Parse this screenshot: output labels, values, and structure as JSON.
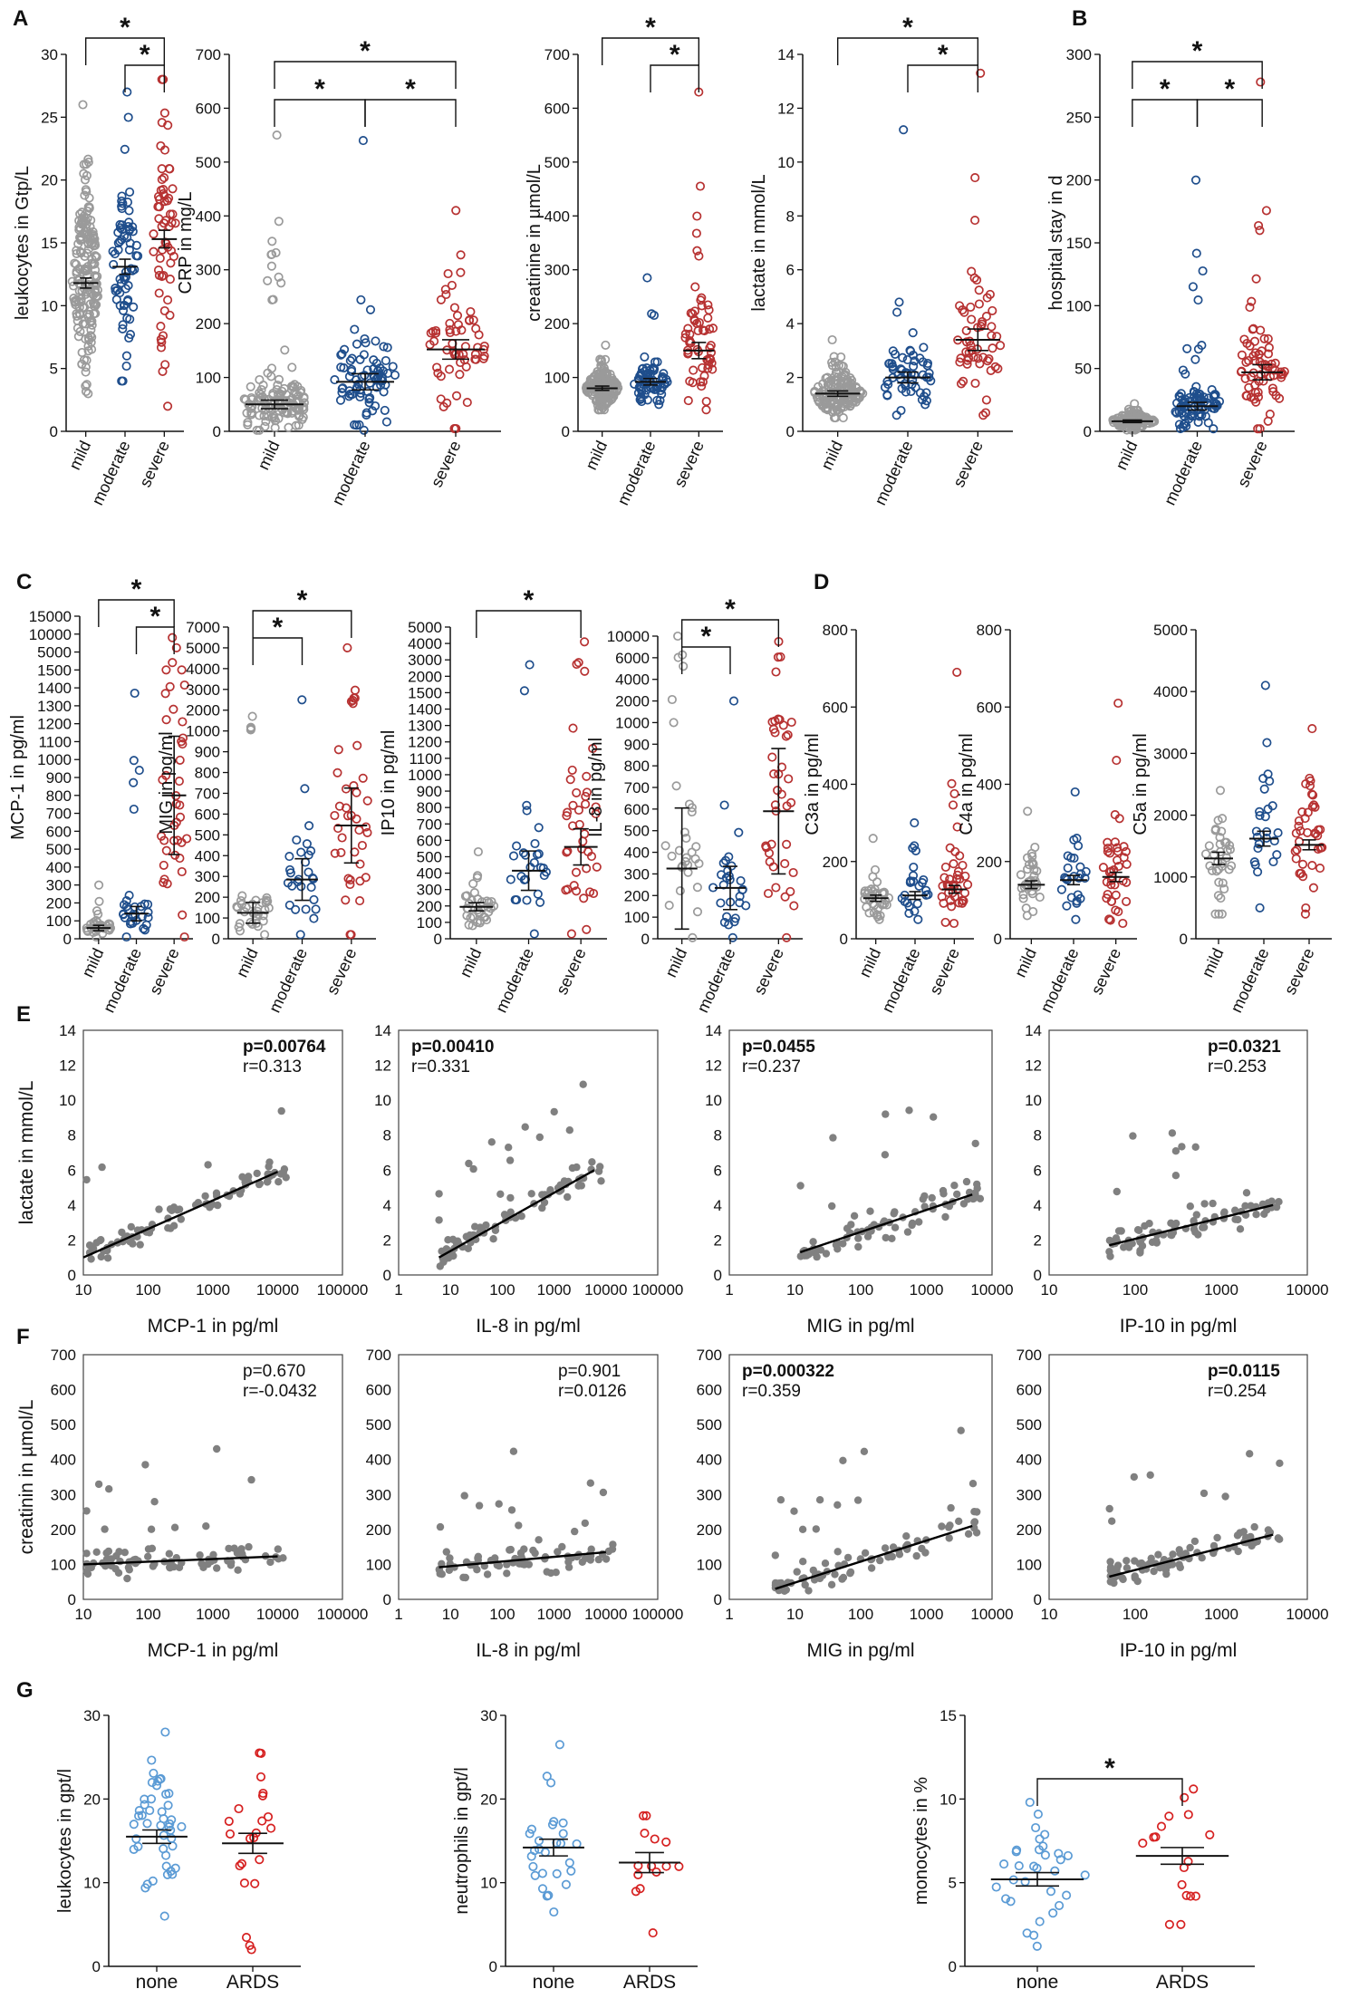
{
  "colors": {
    "mild": "#9a9a9a",
    "moderate": "#1f4e8c",
    "severe": "#b73232",
    "none": "#5b9bd5",
    "ARDS": "#d62020",
    "scatter": "#808080",
    "line": "#000000"
  },
  "chart_data": [
    {
      "id": "A1",
      "panel": "A",
      "type": "scatter",
      "ylabel": "leukocytes in Gtp/L",
      "ylim": [
        0,
        30
      ],
      "yticks": [
        "30",
        "25",
        "20",
        "15",
        "10",
        "5",
        "0"
      ],
      "categories": [
        "mild",
        "moderate",
        "severe"
      ],
      "means": [
        11.8,
        13.1,
        15.3
      ],
      "sem": [
        0.4,
        0.6,
        0.7
      ],
      "n": [
        180,
        70,
        60
      ],
      "range": [
        [
          3,
          26
        ],
        [
          4,
          27
        ],
        [
          2,
          28
        ]
      ],
      "sig": [
        {
          "a": 0,
          "b": 2,
          "label": "*"
        },
        {
          "a": 1,
          "b": 2,
          "label": "*"
        }
      ]
    },
    {
      "id": "A2",
      "panel": "A",
      "type": "scatter",
      "ylabel": "CRP in mg/L",
      "ylim": [
        0,
        700
      ],
      "yticks": [
        "700",
        "600",
        "500",
        "400",
        "300",
        "200",
        "100",
        "0"
      ],
      "categories": [
        "mild",
        "moderate",
        "severe"
      ],
      "means": [
        50,
        92,
        152
      ],
      "sem": [
        8,
        15,
        18
      ],
      "n": [
        130,
        80,
        60
      ],
      "range": [
        [
          2,
          550
        ],
        [
          2,
          540
        ],
        [
          5,
          410
        ]
      ],
      "sig": [
        {
          "a": 0,
          "b": 2,
          "label": "*"
        },
        {
          "a": 0,
          "b": 1,
          "label": "*"
        },
        {
          "a": 1,
          "b": 2,
          "label": "*"
        }
      ]
    },
    {
      "id": "A3",
      "panel": "A",
      "type": "scatter",
      "ylabel": "creatinine in µmol/L",
      "ylim": [
        0,
        700
      ],
      "yticks": [
        "700",
        "600",
        "500",
        "400",
        "300",
        "200",
        "100",
        "0"
      ],
      "categories": [
        "mild",
        "moderate",
        "severe"
      ],
      "means": [
        80,
        92,
        150
      ],
      "sem": [
        4,
        6,
        15
      ],
      "n": [
        170,
        70,
        60
      ],
      "range": [
        [
          40,
          160
        ],
        [
          50,
          285
        ],
        [
          40,
          630
        ]
      ],
      "sig": [
        {
          "a": 0,
          "b": 2,
          "label": "*"
        },
        {
          "a": 1,
          "b": 2,
          "label": "*"
        }
      ]
    },
    {
      "id": "A4",
      "panel": "A",
      "type": "scatter",
      "ylabel": "lactate in mmol/L",
      "ylim": [
        0,
        14
      ],
      "yticks": [
        "14",
        "12",
        "10",
        "8",
        "6",
        "4",
        "2",
        "0"
      ],
      "categories": [
        "mild",
        "moderate",
        "severe"
      ],
      "means": [
        1.4,
        2.0,
        3.4
      ],
      "sem": [
        0.1,
        0.2,
        0.4
      ],
      "n": [
        150,
        60,
        55
      ],
      "range": [
        [
          0.5,
          3.4
        ],
        [
          0.6,
          11.2
        ],
        [
          0.6,
          13.3
        ]
      ],
      "sig": [
        {
          "a": 0,
          "b": 2,
          "label": "*"
        },
        {
          "a": 1,
          "b": 2,
          "label": "*"
        }
      ]
    },
    {
      "id": "B1",
      "panel": "B",
      "type": "scatter",
      "ylabel": "hospital stay in d",
      "ylim": [
        0,
        300
      ],
      "yticks": [
        "300",
        "250",
        "200",
        "150",
        "100",
        "50",
        "0"
      ],
      "categories": [
        "mild",
        "moderate",
        "severe"
      ],
      "means": [
        8,
        20,
        47
      ],
      "sem": [
        1,
        3,
        6
      ],
      "n": [
        130,
        90,
        70
      ],
      "range": [
        [
          1,
          22
        ],
        [
          2,
          200
        ],
        [
          2,
          278
        ]
      ],
      "sig": [
        {
          "a": 0,
          "b": 2,
          "label": "*"
        },
        {
          "a": 0,
          "b": 1,
          "label": "*"
        },
        {
          "a": 1,
          "b": 2,
          "label": "*"
        }
      ]
    },
    {
      "id": "C1",
      "panel": "C",
      "type": "scatter",
      "ylabel": "MCP-1 in pg/ml",
      "yticks": [
        "15000",
        "10000",
        "5000",
        "1500",
        "1400",
        "1300",
        "1200",
        "1100",
        "1000",
        "900",
        "800",
        "700",
        "600",
        "500",
        "400",
        "300",
        "200",
        "100",
        "0"
      ],
      "categories": [
        "mild",
        "moderate",
        "severe"
      ],
      "means": [
        60,
        140,
        800
      ],
      "sem": [
        15,
        40,
        330
      ],
      "n": [
        35,
        30,
        40
      ],
      "range": [
        [
          10,
          300
        ],
        [
          10,
          1370
        ],
        [
          10,
          9000
        ]
      ],
      "sig": [
        {
          "a": 0,
          "b": 2,
          "label": "*"
        },
        {
          "a": 1,
          "b": 2,
          "label": "*"
        }
      ]
    },
    {
      "id": "C2",
      "panel": "C",
      "type": "scatter",
      "ylabel": "MIG in pg/ml",
      "yticks": [
        "7000",
        "5000",
        "4000",
        "3000",
        "2000",
        "1000",
        "900",
        "800",
        "700",
        "600",
        "500",
        "400",
        "300",
        "200",
        "100",
        "0"
      ],
      "categories": [
        "mild",
        "moderate",
        "severe"
      ],
      "means": [
        125,
        285,
        545
      ],
      "sem": [
        50,
        100,
        180
      ],
      "n": [
        35,
        28,
        40
      ],
      "range": [
        [
          20,
          1700
        ],
        [
          20,
          2500
        ],
        [
          20,
          5000
        ]
      ],
      "sig": [
        {
          "a": 0,
          "b": 2,
          "label": "*"
        },
        {
          "a": 0,
          "b": 1,
          "label": "*"
        }
      ]
    },
    {
      "id": "C3",
      "panel": "C",
      "type": "scatter",
      "ylabel": "IP10 in pg/ml",
      "yticks": [
        "5000",
        "4000",
        "3000",
        "2000",
        "1500",
        "1400",
        "1300",
        "1200",
        "1100",
        "1000",
        "900",
        "800",
        "700",
        "600",
        "500",
        "400",
        "300",
        "200",
        "100",
        "0"
      ],
      "categories": [
        "mild",
        "moderate",
        "severe"
      ],
      "means": [
        195,
        415,
        560
      ],
      "sem": [
        25,
        120,
        110
      ],
      "n": [
        35,
        28,
        40
      ],
      "range": [
        [
          80,
          530
        ],
        [
          30,
          2700
        ],
        [
          30,
          4100
        ]
      ],
      "sig": [
        {
          "a": 0,
          "b": 2,
          "label": "*"
        }
      ]
    },
    {
      "id": "C4",
      "panel": "C",
      "type": "scatter",
      "ylabel": "IL-8 in pg/ml",
      "yticks": [
        "10000",
        "6000",
        "4000",
        "2000",
        "1000",
        "900",
        "800",
        "700",
        "600",
        "500",
        "400",
        "300",
        "200",
        "100",
        "0"
      ],
      "categories": [
        "mild",
        "moderate",
        "severe"
      ],
      "means": [
        325,
        235,
        590
      ],
      "sem": [
        280,
        100,
        290
      ],
      "n": [
        30,
        28,
        40
      ],
      "range": [
        [
          5,
          10000
        ],
        [
          5,
          2000
        ],
        [
          5,
          9000
        ]
      ],
      "sig": [
        {
          "a": 0,
          "b": 2,
          "label": "*"
        },
        {
          "a": 0,
          "b": 1,
          "label": "*"
        }
      ]
    },
    {
      "id": "D1",
      "panel": "D",
      "type": "scatter",
      "ylabel": "C3a in pg/ml",
      "ylim": [
        0,
        800
      ],
      "yticks": [
        "800",
        "600",
        "400",
        "200",
        "0"
      ],
      "categories": [
        "mild",
        "moderate",
        "severe"
      ],
      "means": [
        105,
        112,
        128
      ],
      "sem": [
        8,
        10,
        10
      ],
      "n": [
        35,
        25,
        40
      ],
      "range": [
        [
          50,
          260
        ],
        [
          50,
          300
        ],
        [
          40,
          690
        ]
      ],
      "sig": []
    },
    {
      "id": "D2",
      "panel": "D",
      "type": "scatter",
      "ylabel": "C4a in pg/ml",
      "ylim": [
        0,
        800
      ],
      "yticks": [
        "800",
        "600",
        "400",
        "200",
        "0"
      ],
      "categories": [
        "mild",
        "moderate",
        "severe"
      ],
      "means": [
        140,
        152,
        160
      ],
      "sem": [
        10,
        12,
        12
      ],
      "n": [
        35,
        25,
        40
      ],
      "range": [
        [
          60,
          330
        ],
        [
          50,
          380
        ],
        [
          40,
          610
        ]
      ],
      "sig": []
    },
    {
      "id": "D3",
      "panel": "D",
      "type": "scatter",
      "ylabel": "C5a in pg/ml",
      "ylim": [
        0,
        5000
      ],
      "yticks": [
        "5000",
        "4000",
        "3000",
        "2000",
        "1000",
        "0"
      ],
      "categories": [
        "mild",
        "moderate",
        "severe"
      ],
      "means": [
        1300,
        1620,
        1520
      ],
      "sem": [
        100,
        120,
        80
      ],
      "n": [
        35,
        25,
        40
      ],
      "range": [
        [
          400,
          2400
        ],
        [
          500,
          4100
        ],
        [
          400,
          3400
        ]
      ],
      "sig": []
    },
    {
      "id": "E1",
      "panel": "E",
      "type": "scatter",
      "ylabel": "lactate in mmol/L",
      "xlabel": "MCP-1 in pg/ml",
      "xscale": "log",
      "xlim": [
        10,
        100000
      ],
      "xticks": [
        "10",
        "100",
        "1000",
        "10000",
        "100000"
      ],
      "ylim": [
        0,
        14
      ],
      "yticks": [
        "14",
        "12",
        "10",
        "8",
        "6",
        "4",
        "2",
        "0"
      ],
      "p": "p=0.00764",
      "r": "r=0.313",
      "p_bold": true,
      "stat_pos": "right",
      "fit": [
        [
          10,
          1.0
        ],
        [
          10000,
          5.9
        ]
      ]
    },
    {
      "id": "E2",
      "panel": "E",
      "type": "scatter",
      "xlabel": "IL-8 in pg/ml",
      "xscale": "log",
      "xlim": [
        1,
        100000
      ],
      "xticks": [
        "1",
        "10",
        "100",
        "1000",
        "10000",
        "100000"
      ],
      "ylim": [
        0,
        14
      ],
      "yticks": [
        "14",
        "12",
        "10",
        "8",
        "6",
        "4",
        "2",
        "0"
      ],
      "p": "p=0.00410",
      "r": "r=0.331",
      "p_bold": true,
      "stat_pos": "left",
      "fit": [
        [
          6,
          1.0
        ],
        [
          6000,
          6.0
        ]
      ]
    },
    {
      "id": "E3",
      "panel": "E",
      "type": "scatter",
      "xlabel": "MIG in pg/ml",
      "xscale": "log",
      "xlim": [
        1,
        10000
      ],
      "xticks": [
        "1",
        "10",
        "100",
        "1000",
        "10000"
      ],
      "ylim": [
        0,
        14
      ],
      "yticks": [
        "14",
        "12",
        "10",
        "8",
        "6",
        "4",
        "2",
        "0"
      ],
      "p": "p=0.0455",
      "r": "r=0.237",
      "p_bold": true,
      "stat_pos": "left",
      "fit": [
        [
          12,
          1.3
        ],
        [
          5000,
          4.6
        ]
      ]
    },
    {
      "id": "E4",
      "panel": "E",
      "type": "scatter",
      "xlabel": "IP-10 in pg/ml",
      "xscale": "log",
      "xlim": [
        10,
        10000
      ],
      "xticks": [
        "10",
        "100",
        "1000",
        "10000"
      ],
      "ylim": [
        0,
        14
      ],
      "yticks": [
        "14",
        "12",
        "10",
        "8",
        "6",
        "4",
        "2",
        "0"
      ],
      "p": "p=0.0321",
      "r": "r=0.253",
      "p_bold": true,
      "stat_pos": "right",
      "fit": [
        [
          50,
          1.7
        ],
        [
          4000,
          4.0
        ]
      ]
    },
    {
      "id": "F1",
      "panel": "F",
      "type": "scatter",
      "ylabel": "creatinin in µmol/L",
      "xlabel": "MCP-1 in pg/ml",
      "xscale": "log",
      "xlim": [
        10,
        100000
      ],
      "xticks": [
        "10",
        "100",
        "1000",
        "10000",
        "100000"
      ],
      "ylim": [
        0,
        700
      ],
      "yticks": [
        "700",
        "600",
        "500",
        "400",
        "300",
        "200",
        "100",
        "0"
      ],
      "p": "p=0.670",
      "r": "r=-0.0432",
      "p_bold": false,
      "stat_pos": "right",
      "fit": [
        [
          10,
          100
        ],
        [
          10000,
          123
        ]
      ]
    },
    {
      "id": "F2",
      "panel": "F",
      "type": "scatter",
      "xlabel": "IL-8 in pg/ml",
      "xscale": "log",
      "xlim": [
        1,
        100000
      ],
      "xticks": [
        "1",
        "10",
        "100",
        "1000",
        "10000",
        "100000"
      ],
      "ylim": [
        0,
        700
      ],
      "yticks": [
        "700",
        "600",
        "500",
        "400",
        "300",
        "200",
        "100",
        "0"
      ],
      "p": "p=0.901",
      "r": "r=0.0126",
      "p_bold": false,
      "stat_pos": "right",
      "fit": [
        [
          6,
          92
        ],
        [
          10000,
          135
        ]
      ]
    },
    {
      "id": "F3",
      "panel": "F",
      "type": "scatter",
      "xlabel": "MIG in pg/ml",
      "xscale": "log",
      "xlim": [
        1,
        10000
      ],
      "xticks": [
        "1",
        "10",
        "100",
        "1000",
        "10000"
      ],
      "ylim": [
        0,
        700
      ],
      "yticks": [
        "700",
        "600",
        "500",
        "400",
        "300",
        "200",
        "100",
        "0"
      ],
      "p": "p=0.000322",
      "r": "r=0.359",
      "p_bold": true,
      "stat_pos": "left",
      "fit": [
        [
          5,
          30
        ],
        [
          5000,
          210
        ]
      ]
    },
    {
      "id": "F4",
      "panel": "F",
      "type": "scatter",
      "xlabel": "IP-10 in pg/ml",
      "xscale": "log",
      "xlim": [
        10,
        10000
      ],
      "xticks": [
        "10",
        "100",
        "1000",
        "10000"
      ],
      "ylim": [
        0,
        700
      ],
      "yticks": [
        "700",
        "600",
        "500",
        "400",
        "300",
        "200",
        "100",
        "0"
      ],
      "p": "p=0.0115",
      "r": "r=0.254",
      "p_bold": true,
      "stat_pos": "right",
      "fit": [
        [
          50,
          65
        ],
        [
          4000,
          185
        ]
      ]
    },
    {
      "id": "G1",
      "panel": "G",
      "type": "scatter",
      "ylabel": "leukocytes in gpt/l",
      "ylim": [
        0,
        30
      ],
      "yticks": [
        "30",
        "20",
        "10",
        "0"
      ],
      "categories": [
        "none",
        "ARDS"
      ],
      "means": [
        15.5,
        14.7
      ],
      "sem": [
        0.8,
        1.2
      ],
      "n": [
        45,
        22
      ],
      "range": [
        [
          6,
          28
        ],
        [
          2,
          25.5
        ]
      ],
      "sig": []
    },
    {
      "id": "G2",
      "panel": "G",
      "type": "scatter",
      "ylabel": "neutrophils in gpt/l",
      "ylim": [
        0,
        30
      ],
      "yticks": [
        "30",
        "20",
        "10",
        "0"
      ],
      "categories": [
        "none",
        "ARDS"
      ],
      "means": [
        14.2,
        12.4
      ],
      "sem": [
        1.0,
        1.2
      ],
      "n": [
        28,
        14
      ],
      "range": [
        [
          6.5,
          26.5
        ],
        [
          4,
          18
        ]
      ],
      "sig": []
    },
    {
      "id": "G3",
      "panel": "G",
      "type": "scatter",
      "ylabel": "monocytes in %",
      "ylim": [
        0,
        15
      ],
      "yticks": [
        "15",
        "10",
        "5",
        "0"
      ],
      "categories": [
        "none",
        "ARDS"
      ],
      "means": [
        5.2,
        6.6
      ],
      "sem": [
        0.4,
        0.5
      ],
      "n": [
        32,
        17
      ],
      "range": [
        [
          1.2,
          9.8
        ],
        [
          2.5,
          10.6
        ]
      ],
      "sig": [
        {
          "a": 0,
          "b": 1,
          "label": "*"
        }
      ]
    }
  ]
}
